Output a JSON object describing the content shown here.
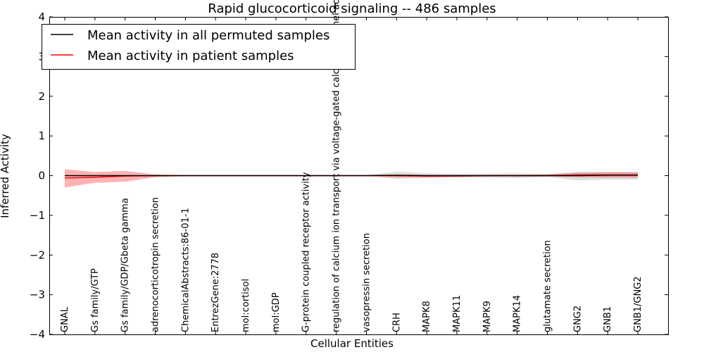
{
  "chart_data": {
    "type": "line",
    "title": "Rapid glucocorticoid signaling -- 486 samples",
    "xlabel": "Cellular Entities",
    "ylabel": "Inferred Activity",
    "ylim": [
      -4,
      4
    ],
    "yticks": [
      -4,
      -3,
      -2,
      -1,
      0,
      1,
      2,
      3,
      4
    ],
    "grid": false,
    "legend_position": "top-left",
    "categories": [
      "GNAL",
      "Gs family/GTP",
      "Gs family/GDP/Gbeta gamma",
      "adrenocorticotropin secretion",
      "ChemicalAbstracts:86-01-1",
      "EntrezGene:2778",
      "mol:cortisol",
      "mol:GDP",
      "G-protein coupled receptor activity",
      "regulation of calcium ion transport via voltage-gated calcium channel activity",
      "vasopressin secretion",
      "CRH",
      "MAPK8",
      "MAPK11",
      "MAPK9",
      "MAPK14",
      "glutamate secretion",
      "GNG2",
      "GNB1",
      "GNB1/GNG2"
    ],
    "series": [
      {
        "name": "Mean activity in all permuted samples",
        "color": "#000000",
        "band_color": "#b0b0b0",
        "values": [
          0.0,
          0.0,
          0.0,
          0.0,
          0.0,
          0.0,
          0.0,
          0.0,
          0.0,
          0.0,
          0.0,
          0.01,
          0.0,
          0.0,
          0.0,
          0.0,
          0.0,
          0.0,
          0.01,
          0.01
        ],
        "lower": [
          -0.01,
          -0.01,
          -0.01,
          -0.01,
          -0.01,
          -0.01,
          -0.01,
          -0.01,
          -0.01,
          -0.01,
          -0.01,
          -0.08,
          -0.06,
          -0.04,
          -0.05,
          -0.06,
          -0.03,
          -0.12,
          -0.1,
          -0.1
        ],
        "upper": [
          0.01,
          0.01,
          0.01,
          0.01,
          0.01,
          0.01,
          0.01,
          0.01,
          0.01,
          0.01,
          0.01,
          0.1,
          0.06,
          0.05,
          0.05,
          0.06,
          0.04,
          0.1,
          0.1,
          0.1
        ]
      },
      {
        "name": "Mean activity in patient samples",
        "color": "#ff0000",
        "band_color": "#ff0000",
        "values": [
          -0.06,
          -0.04,
          -0.01,
          0.0,
          0.0,
          0.0,
          0.0,
          0.0,
          0.0,
          0.0,
          0.0,
          0.0,
          -0.01,
          -0.01,
          0.0,
          0.0,
          0.0,
          0.02,
          0.02,
          0.02
        ],
        "lower": [
          -0.3,
          -0.18,
          -0.15,
          -0.04,
          -0.01,
          -0.01,
          -0.01,
          -0.01,
          -0.01,
          -0.01,
          -0.01,
          -0.04,
          -0.04,
          -0.03,
          -0.02,
          -0.02,
          -0.02,
          -0.04,
          -0.05,
          -0.05
        ],
        "upper": [
          0.16,
          0.09,
          0.12,
          0.03,
          0.01,
          0.01,
          0.01,
          0.01,
          0.01,
          0.01,
          0.01,
          0.03,
          0.02,
          0.02,
          0.02,
          0.02,
          0.03,
          0.07,
          0.08,
          0.08
        ]
      }
    ]
  }
}
